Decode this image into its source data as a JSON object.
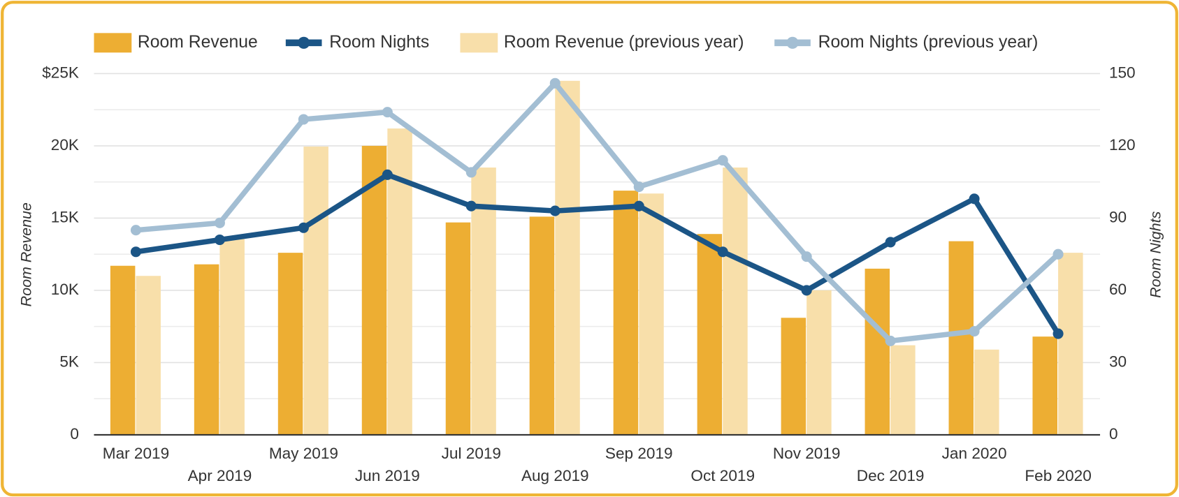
{
  "chart_data": {
    "type": "bar-line",
    "categories": [
      "Mar 2019",
      "Apr 2019",
      "May 2019",
      "Jun 2019",
      "Jul 2019",
      "Aug 2019",
      "Sep 2019",
      "Oct 2019",
      "Nov 2019",
      "Dec 2019",
      "Jan 2020",
      "Feb 2020"
    ],
    "series": [
      {
        "name": "Room Revenue",
        "type": "bar",
        "color": "#edae33",
        "values": [
          11700,
          11800,
          12600,
          20000,
          14700,
          15100,
          16900,
          13900,
          8100,
          11500,
          13400,
          6800
        ]
      },
      {
        "name": "Room Nights",
        "type": "line",
        "axis": "y2",
        "color": "#1b5586",
        "values": [
          76,
          81,
          86,
          108,
          95,
          93,
          95,
          76,
          60,
          80,
          98,
          42
        ]
      },
      {
        "name": "Room Revenue (previous year)",
        "type": "bar",
        "color": "#f8dfaa",
        "values": [
          11000,
          13600,
          19950,
          21200,
          18500,
          24500,
          16700,
          18500,
          10000,
          6200,
          5900,
          12600
        ]
      },
      {
        "name": "Room Nights (previous year)",
        "type": "line",
        "axis": "y2",
        "color": "#a3bed3",
        "values": [
          85,
          88,
          131,
          134,
          109,
          146,
          103,
          114,
          74,
          39,
          43,
          75
        ]
      }
    ],
    "ylabel": "Room Revenue",
    "y2label": "Room Nights",
    "ylim": [
      0,
      25000
    ],
    "yticks": [
      0,
      {
        "value": 5000,
        "label": "5K"
      },
      {
        "value": 10000,
        "label": "10K"
      },
      {
        "value": 15000,
        "label": "15K"
      },
      {
        "value": 20000,
        "label": "20K"
      },
      {
        "value": 25000,
        "label": "$25K"
      }
    ],
    "yticks_minor": [
      2500,
      7500,
      12500,
      17500,
      22500
    ],
    "y2lim": [
      0,
      150
    ],
    "y2ticks": [
      0,
      30,
      60,
      90,
      120,
      150
    ],
    "grid": true,
    "legend": "top"
  }
}
